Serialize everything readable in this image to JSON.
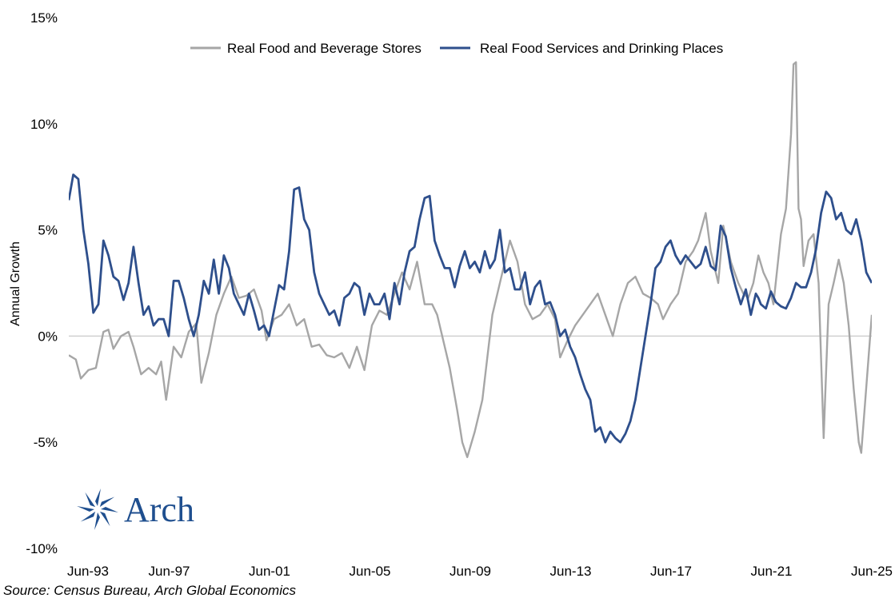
{
  "chart_data": {
    "type": "line",
    "title": "",
    "xlabel": "",
    "ylabel": "Annual Growth",
    "ylim": [
      -10,
      15
    ],
    "yticks": [
      15,
      10,
      5,
      0,
      -5,
      -10
    ],
    "ytick_labels": [
      "15%",
      "10%",
      "5%",
      "0%",
      "-5%",
      "-10%"
    ],
    "xlim": [
      1993.42,
      2025.42
    ],
    "xticks": [
      1993.42,
      1997.42,
      2001.42,
      2005.42,
      2009.42,
      2013.42,
      2017.42,
      2021.42,
      2025.42
    ],
    "xtick_labels": [
      "Jun-93",
      "Jun-97",
      "Jun-01",
      "Jun-05",
      "Jun-09",
      "Jun-13",
      "Jun-17",
      "Jun-21",
      "Jun-25"
    ],
    "legend_position": "top",
    "series": [
      {
        "name": "Real Food and Beverage Stores",
        "color": "#a6a6a6",
        "points": [
          [
            1993.42,
            -0.9
          ],
          [
            1993.7,
            -1.1
          ],
          [
            1993.9,
            -2.0
          ],
          [
            1994.2,
            -1.6
          ],
          [
            1994.5,
            -1.5
          ],
          [
            1994.8,
            0.2
          ],
          [
            1995.0,
            0.3
          ],
          [
            1995.2,
            -0.6
          ],
          [
            1995.5,
            0.0
          ],
          [
            1995.8,
            0.2
          ],
          [
            1996.0,
            -0.5
          ],
          [
            1996.3,
            -1.8
          ],
          [
            1996.6,
            -1.5
          ],
          [
            1996.9,
            -1.8
          ],
          [
            1997.1,
            -1.2
          ],
          [
            1997.3,
            -3.0
          ],
          [
            1997.6,
            -0.5
          ],
          [
            1997.9,
            -1.0
          ],
          [
            1998.2,
            0.2
          ],
          [
            1998.5,
            0.6
          ],
          [
            1998.7,
            -2.2
          ],
          [
            1999.0,
            -0.8
          ],
          [
            1999.3,
            1.0
          ],
          [
            1999.6,
            2.0
          ],
          [
            1999.9,
            2.8
          ],
          [
            2000.2,
            1.8
          ],
          [
            2000.5,
            1.9
          ],
          [
            2000.8,
            2.2
          ],
          [
            2001.1,
            1.2
          ],
          [
            2001.3,
            -0.2
          ],
          [
            2001.6,
            0.8
          ],
          [
            2001.9,
            1.0
          ],
          [
            2002.2,
            1.5
          ],
          [
            2002.5,
            0.5
          ],
          [
            2002.8,
            0.8
          ],
          [
            2003.1,
            -0.5
          ],
          [
            2003.4,
            -0.4
          ],
          [
            2003.7,
            -0.9
          ],
          [
            2004.0,
            -1.0
          ],
          [
            2004.3,
            -0.8
          ],
          [
            2004.6,
            -1.5
          ],
          [
            2004.9,
            -0.5
          ],
          [
            2005.2,
            -1.6
          ],
          [
            2005.5,
            0.5
          ],
          [
            2005.8,
            1.2
          ],
          [
            2006.1,
            1.0
          ],
          [
            2006.4,
            2.0
          ],
          [
            2006.7,
            3.0
          ],
          [
            2007.0,
            2.2
          ],
          [
            2007.3,
            3.5
          ],
          [
            2007.6,
            1.5
          ],
          [
            2007.9,
            1.5
          ],
          [
            2008.1,
            1.0
          ],
          [
            2008.3,
            0.0
          ],
          [
            2008.6,
            -1.5
          ],
          [
            2008.9,
            -3.5
          ],
          [
            2009.1,
            -5.0
          ],
          [
            2009.3,
            -5.7
          ],
          [
            2009.6,
            -4.5
          ],
          [
            2009.9,
            -3.0
          ],
          [
            2010.1,
            -1.0
          ],
          [
            2010.3,
            1.0
          ],
          [
            2010.6,
            2.5
          ],
          [
            2010.8,
            3.5
          ],
          [
            2011.0,
            4.5
          ],
          [
            2011.3,
            3.5
          ],
          [
            2011.6,
            1.5
          ],
          [
            2011.9,
            0.8
          ],
          [
            2012.2,
            1.0
          ],
          [
            2012.5,
            1.5
          ],
          [
            2012.8,
            0.8
          ],
          [
            2013.0,
            -1.0
          ],
          [
            2013.3,
            -0.2
          ],
          [
            2013.6,
            0.5
          ],
          [
            2013.9,
            1.0
          ],
          [
            2014.2,
            1.5
          ],
          [
            2014.5,
            2.0
          ],
          [
            2014.8,
            1.0
          ],
          [
            2015.1,
            0.0
          ],
          [
            2015.4,
            1.5
          ],
          [
            2015.7,
            2.5
          ],
          [
            2016.0,
            2.8
          ],
          [
            2016.3,
            2.0
          ],
          [
            2016.6,
            1.8
          ],
          [
            2016.9,
            1.5
          ],
          [
            2017.1,
            0.8
          ],
          [
            2017.4,
            1.5
          ],
          [
            2017.7,
            2.0
          ],
          [
            2018.0,
            3.5
          ],
          [
            2018.3,
            4.0
          ],
          [
            2018.5,
            4.5
          ],
          [
            2018.8,
            5.8
          ],
          [
            2019.0,
            4.0
          ],
          [
            2019.3,
            2.5
          ],
          [
            2019.5,
            5.2
          ],
          [
            2019.8,
            3.5
          ],
          [
            2020.1,
            2.5
          ],
          [
            2020.3,
            2.0
          ],
          [
            2020.5,
            1.8
          ],
          [
            2020.7,
            2.5
          ],
          [
            2020.9,
            3.8
          ],
          [
            2021.1,
            3.0
          ],
          [
            2021.3,
            2.5
          ],
          [
            2021.5,
            1.5
          ],
          [
            2021.8,
            4.8
          ],
          [
            2022.0,
            6.0
          ],
          [
            2022.2,
            9.5
          ],
          [
            2022.3,
            12.8
          ],
          [
            2022.4,
            12.9
          ],
          [
            2022.5,
            6.0
          ],
          [
            2022.6,
            5.5
          ],
          [
            2022.7,
            3.3
          ],
          [
            2022.9,
            4.5
          ],
          [
            2023.1,
            4.8
          ],
          [
            2023.3,
            2.5
          ],
          [
            2023.5,
            -4.8
          ],
          [
            2023.7,
            1.5
          ],
          [
            2023.9,
            2.5
          ],
          [
            2024.1,
            3.6
          ],
          [
            2024.3,
            2.5
          ],
          [
            2024.5,
            0.5
          ],
          [
            2024.7,
            -2.5
          ],
          [
            2024.9,
            -5.0
          ],
          [
            2025.0,
            -5.5
          ],
          [
            2025.42,
            1.0
          ]
        ]
      },
      {
        "name": "Real Food Services and Drinking Places",
        "color": "#2e4f8c",
        "points": [
          [
            1993.42,
            6.4
          ],
          [
            1993.6,
            7.6
          ],
          [
            1993.8,
            7.4
          ],
          [
            1994.0,
            5.0
          ],
          [
            1994.2,
            3.4
          ],
          [
            1994.4,
            1.1
          ],
          [
            1994.6,
            1.5
          ],
          [
            1994.8,
            4.5
          ],
          [
            1995.0,
            3.8
          ],
          [
            1995.2,
            2.8
          ],
          [
            1995.4,
            2.6
          ],
          [
            1995.6,
            1.7
          ],
          [
            1995.8,
            2.5
          ],
          [
            1996.0,
            4.2
          ],
          [
            1996.2,
            2.5
          ],
          [
            1996.4,
            1.0
          ],
          [
            1996.6,
            1.4
          ],
          [
            1996.8,
            0.5
          ],
          [
            1997.0,
            0.8
          ],
          [
            1997.2,
            0.8
          ],
          [
            1997.4,
            0.0
          ],
          [
            1997.6,
            2.6
          ],
          [
            1997.8,
            2.6
          ],
          [
            1998.0,
            1.8
          ],
          [
            1998.2,
            0.8
          ],
          [
            1998.4,
            0.0
          ],
          [
            1998.6,
            1.0
          ],
          [
            1998.8,
            2.6
          ],
          [
            1999.0,
            2.0
          ],
          [
            1999.2,
            3.6
          ],
          [
            1999.4,
            2.0
          ],
          [
            1999.6,
            3.8
          ],
          [
            1999.8,
            3.2
          ],
          [
            2000.0,
            2.0
          ],
          [
            2000.2,
            1.5
          ],
          [
            2000.4,
            1.0
          ],
          [
            2000.6,
            2.0
          ],
          [
            2000.8,
            1.2
          ],
          [
            2001.0,
            0.3
          ],
          [
            2001.2,
            0.5
          ],
          [
            2001.4,
            0.0
          ],
          [
            2001.6,
            1.2
          ],
          [
            2001.8,
            2.4
          ],
          [
            2002.0,
            2.2
          ],
          [
            2002.2,
            4.0
          ],
          [
            2002.4,
            6.9
          ],
          [
            2002.6,
            7.0
          ],
          [
            2002.8,
            5.5
          ],
          [
            2003.0,
            5.0
          ],
          [
            2003.2,
            3.0
          ],
          [
            2003.4,
            2.0
          ],
          [
            2003.6,
            1.5
          ],
          [
            2003.8,
            1.0
          ],
          [
            2004.0,
            1.2
          ],
          [
            2004.2,
            0.5
          ],
          [
            2004.4,
            1.8
          ],
          [
            2004.6,
            2.0
          ],
          [
            2004.8,
            2.5
          ],
          [
            2005.0,
            2.3
          ],
          [
            2005.2,
            1.0
          ],
          [
            2005.4,
            2.0
          ],
          [
            2005.6,
            1.5
          ],
          [
            2005.8,
            1.5
          ],
          [
            2006.0,
            2.0
          ],
          [
            2006.2,
            0.8
          ],
          [
            2006.4,
            2.5
          ],
          [
            2006.6,
            1.5
          ],
          [
            2006.8,
            3.0
          ],
          [
            2007.0,
            4.0
          ],
          [
            2007.2,
            4.2
          ],
          [
            2007.4,
            5.5
          ],
          [
            2007.6,
            6.5
          ],
          [
            2007.8,
            6.6
          ],
          [
            2008.0,
            4.5
          ],
          [
            2008.2,
            3.8
          ],
          [
            2008.4,
            3.2
          ],
          [
            2008.6,
            3.2
          ],
          [
            2008.8,
            2.3
          ],
          [
            2009.0,
            3.3
          ],
          [
            2009.2,
            4.0
          ],
          [
            2009.4,
            3.2
          ],
          [
            2009.6,
            3.5
          ],
          [
            2009.8,
            3.0
          ],
          [
            2010.0,
            4.0
          ],
          [
            2010.2,
            3.2
          ],
          [
            2010.4,
            3.6
          ],
          [
            2010.6,
            5.0
          ],
          [
            2010.8,
            3.0
          ],
          [
            2011.0,
            3.2
          ],
          [
            2011.2,
            2.2
          ],
          [
            2011.4,
            2.2
          ],
          [
            2011.6,
            3.0
          ],
          [
            2011.8,
            1.5
          ],
          [
            2012.0,
            2.3
          ],
          [
            2012.2,
            2.6
          ],
          [
            2012.4,
            1.5
          ],
          [
            2012.6,
            1.6
          ],
          [
            2012.8,
            1.0
          ],
          [
            2013.0,
            0.0
          ],
          [
            2013.2,
            0.3
          ],
          [
            2013.4,
            -0.5
          ],
          [
            2013.6,
            -1.0
          ],
          [
            2013.8,
            -1.8
          ],
          [
            2014.0,
            -2.5
          ],
          [
            2014.2,
            -3.0
          ],
          [
            2014.4,
            -4.5
          ],
          [
            2014.6,
            -4.3
          ],
          [
            2014.8,
            -5.0
          ],
          [
            2015.0,
            -4.5
          ],
          [
            2015.2,
            -4.8
          ],
          [
            2015.4,
            -5.0
          ],
          [
            2015.6,
            -4.6
          ],
          [
            2015.8,
            -4.0
          ],
          [
            2016.0,
            -3.0
          ],
          [
            2016.2,
            -1.5
          ],
          [
            2016.4,
            0.0
          ],
          [
            2016.6,
            1.5
          ],
          [
            2016.8,
            3.2
          ],
          [
            2017.0,
            3.5
          ],
          [
            2017.2,
            4.2
          ],
          [
            2017.4,
            4.5
          ],
          [
            2017.6,
            3.8
          ],
          [
            2017.8,
            3.4
          ],
          [
            2018.0,
            3.8
          ],
          [
            2018.2,
            3.5
          ],
          [
            2018.4,
            3.2
          ],
          [
            2018.6,
            3.4
          ],
          [
            2018.8,
            4.2
          ],
          [
            2019.0,
            3.3
          ],
          [
            2019.2,
            3.1
          ],
          [
            2019.4,
            5.2
          ],
          [
            2019.6,
            4.7
          ],
          [
            2019.8,
            3.2
          ],
          [
            2020.0,
            2.3
          ],
          [
            2020.2,
            1.5
          ],
          [
            2020.4,
            2.2
          ],
          [
            2020.6,
            1.0
          ],
          [
            2020.8,
            2.0
          ],
          [
            2020.9,
            1.8
          ],
          [
            2021.0,
            1.5
          ],
          [
            2021.2,
            1.3
          ],
          [
            2021.4,
            2.1
          ],
          [
            2021.6,
            1.6
          ],
          [
            2021.8,
            1.4
          ],
          [
            2022.0,
            1.3
          ],
          [
            2022.2,
            1.8
          ],
          [
            2022.4,
            2.5
          ],
          [
            2022.6,
            2.3
          ],
          [
            2022.8,
            2.3
          ],
          [
            2023.0,
            3.0
          ],
          [
            2023.2,
            4.1
          ],
          [
            2023.4,
            5.8
          ],
          [
            2023.6,
            6.8
          ],
          [
            2023.8,
            6.5
          ],
          [
            2024.0,
            5.5
          ],
          [
            2024.2,
            5.8
          ],
          [
            2024.4,
            5.0
          ],
          [
            2024.6,
            4.8
          ],
          [
            2024.8,
            5.5
          ],
          [
            2025.0,
            4.5
          ],
          [
            2025.2,
            3.0
          ],
          [
            2025.42,
            2.5
          ]
        ]
      }
    ]
  },
  "source": "Source: Census Bureau, Arch Global Economics",
  "logo": {
    "wordmark": "Arch",
    "color": "#1f4f8f"
  }
}
